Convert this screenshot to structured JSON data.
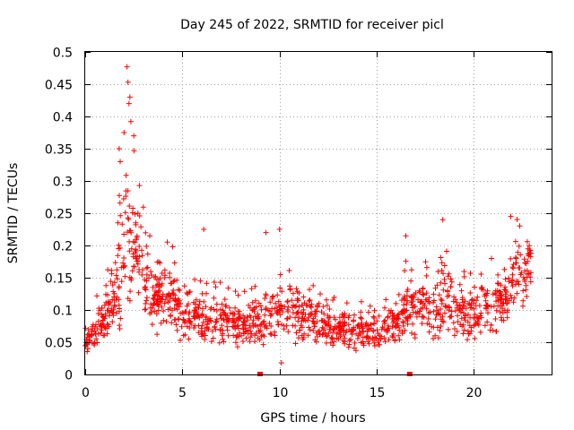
{
  "chart_data": {
    "type": "scatter",
    "title": "Day 245 of 2022, SRMTID for receiver picl",
    "xlabel": "GPS time / hours",
    "ylabel": "SRMTID / TECUs",
    "xlim": [
      0,
      24
    ],
    "ylim": [
      0,
      0.5
    ],
    "x_ticks": [
      0,
      5,
      10,
      15,
      20
    ],
    "y_ticks": [
      0,
      0.05,
      0.1,
      0.15,
      0.2,
      0.25,
      0.3,
      0.35,
      0.4,
      0.45,
      0.5
    ],
    "x_tick_labels": [
      "0",
      "5",
      "10",
      "15",
      "20"
    ],
    "y_tick_labels": [
      "0",
      "0.05",
      "0.1",
      "0.15",
      "0.2",
      "0.25",
      "0.3",
      "0.35",
      "0.4",
      "0.45",
      "0.5"
    ],
    "grid": true,
    "marker": "+",
    "color": "#ff0000",
    "series_envelope": {
      "description_hours": [
        0,
        0.5,
        1,
        1.5,
        1.8,
        2.0,
        2.2,
        2.5,
        3,
        3.5,
        4,
        5,
        6,
        7,
        8,
        9,
        10,
        10.5,
        11,
        12,
        13,
        14,
        15,
        16,
        16.5,
        17,
        18,
        18.5,
        19,
        20,
        21,
        21.5,
        22,
        22.5,
        23
      ],
      "median": [
        0.05,
        0.07,
        0.09,
        0.11,
        0.16,
        0.2,
        0.22,
        0.2,
        0.15,
        0.12,
        0.12,
        0.1,
        0.08,
        0.08,
        0.075,
        0.08,
        0.1,
        0.1,
        0.09,
        0.075,
        0.07,
        0.065,
        0.065,
        0.08,
        0.1,
        0.1,
        0.1,
        0.12,
        0.1,
        0.09,
        0.11,
        0.12,
        0.14,
        0.15,
        0.17
      ],
      "spread": [
        0.02,
        0.03,
        0.04,
        0.06,
        0.1,
        0.12,
        0.13,
        0.1,
        0.08,
        0.06,
        0.06,
        0.05,
        0.04,
        0.04,
        0.035,
        0.04,
        0.05,
        0.05,
        0.045,
        0.035,
        0.03,
        0.03,
        0.03,
        0.04,
        0.05,
        0.05,
        0.05,
        0.06,
        0.05,
        0.04,
        0.05,
        0.05,
        0.06,
        0.06,
        0.05
      ]
    },
    "peak_points": [
      {
        "x": 2.15,
        "y": 0.477
      },
      {
        "x": 2.2,
        "y": 0.453
      },
      {
        "x": 2.3,
        "y": 0.43
      },
      {
        "x": 2.25,
        "y": 0.42
      },
      {
        "x": 2.35,
        "y": 0.392
      },
      {
        "x": 2.5,
        "y": 0.37
      },
      {
        "x": 2.0,
        "y": 0.375
      },
      {
        "x": 1.75,
        "y": 0.35
      },
      {
        "x": 1.8,
        "y": 0.33
      },
      {
        "x": 18.4,
        "y": 0.24
      },
      {
        "x": 21.9,
        "y": 0.245
      },
      {
        "x": 10.0,
        "y": 0.225
      },
      {
        "x": 9.3,
        "y": 0.22
      },
      {
        "x": 16.5,
        "y": 0.215
      },
      {
        "x": 6.1,
        "y": 0.225
      },
      {
        "x": 10.1,
        "y": 0.018
      }
    ],
    "axis_markers": [
      {
        "x": 9.0,
        "y": 0
      },
      {
        "x": 16.7,
        "y": 0
      }
    ]
  }
}
